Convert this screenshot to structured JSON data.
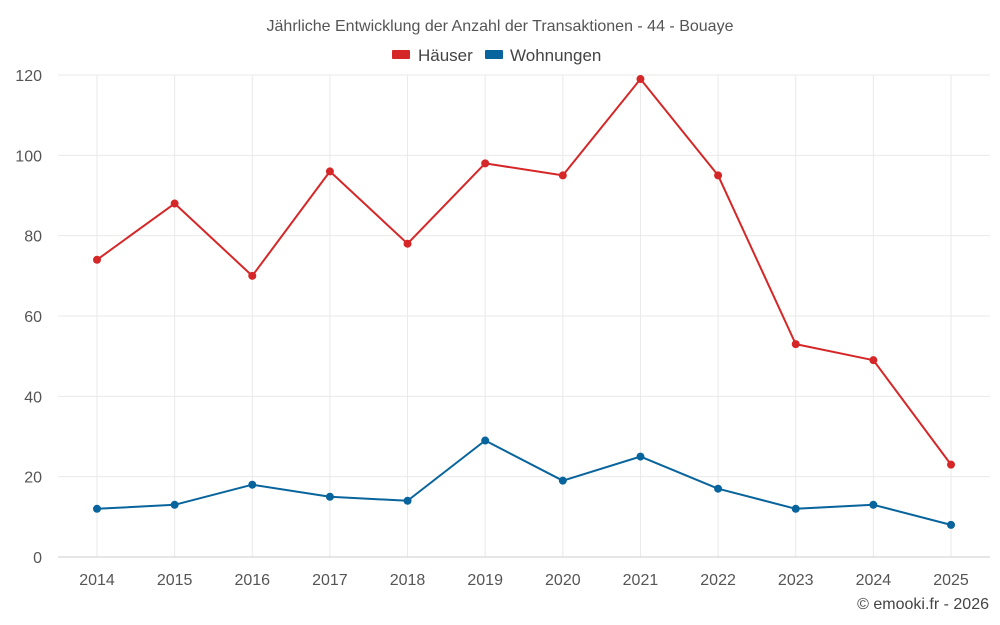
{
  "chart_data": {
    "type": "line",
    "title": "Jährliche Entwicklung der Anzahl der Transaktionen - 44 - Bouaye",
    "categories": [
      "2014",
      "2015",
      "2016",
      "2017",
      "2018",
      "2019",
      "2020",
      "2021",
      "2022",
      "2023",
      "2024",
      "2025"
    ],
    "series": [
      {
        "name": "Häuser",
        "color": "#d62728",
        "values": [
          74,
          88,
          70,
          96,
          78,
          98,
          95,
          119,
          95,
          53,
          49,
          23
        ]
      },
      {
        "name": "Wohnungen",
        "color": "#08649c",
        "values": [
          12,
          13,
          18,
          15,
          14,
          29,
          19,
          25,
          17,
          12,
          13,
          8
        ]
      }
    ],
    "xlabel": "",
    "ylabel": "",
    "ylim": [
      0,
      120
    ],
    "yticks": [
      "0",
      "20",
      "40",
      "60",
      "80",
      "100",
      "120"
    ],
    "grid": true,
    "legend_position": "top-center"
  },
  "credit": "© emooki.fr - 2026"
}
